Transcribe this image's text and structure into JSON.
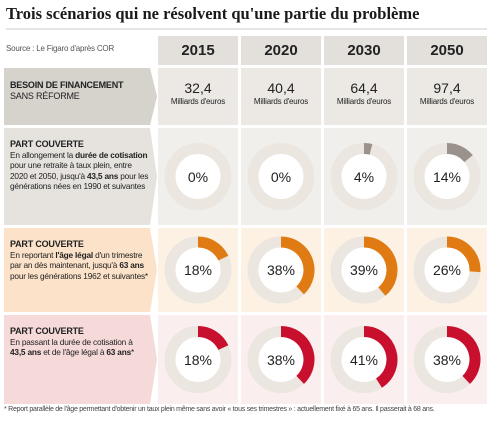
{
  "title": "Trois scénarios qui ne résolvent qu'une partie du problème",
  "source": "Source : Le Figaro d'après COR",
  "years": [
    "2015",
    "2020",
    "2030",
    "2050"
  ],
  "financing": {
    "heading": "BESOIN DE FINANCEMENT",
    "subheading": "SANS RÉFORME",
    "values": [
      32.4,
      40.4,
      64.4,
      97.4
    ],
    "value_labels": [
      "32,4",
      "40,4",
      "64,4",
      "97,4"
    ],
    "unit": "Milliards d'euros"
  },
  "scenarios": [
    {
      "heading": "PART COUVERTE",
      "text": [
        {
          "text": "En allongement la "
        },
        {
          "text": "durée de cotisation",
          "bold": true
        },
        {
          "text": " pour une retraite à taux plein, entre 2020 et 2050, jusqu'à "
        },
        {
          "text": "43,5 ans",
          "bold": true
        },
        {
          "text": " pour les générations nées en 1990 et suivantes"
        }
      ],
      "color": "#9b938b",
      "values": [
        0,
        0,
        4,
        14
      ],
      "value_labels": [
        "0%",
        "0%",
        "4%",
        "14%"
      ]
    },
    {
      "heading": "PART COUVERTE",
      "text": [
        {
          "text": "En reportant "
        },
        {
          "text": "l'âge légal",
          "bold": true
        },
        {
          "text": " d'un trimestre par an dès maintenant, jusqu'à "
        },
        {
          "text": "63 ans",
          "bold": true
        },
        {
          "text": " pour les générations 1962 et suivantes*"
        }
      ],
      "color": "#e07a12",
      "values": [
        18,
        38,
        39,
        26
      ],
      "value_labels": [
        "18%",
        "38%",
        "39%",
        "26%"
      ]
    },
    {
      "heading": "PART COUVERTE",
      "text": [
        {
          "text": "En passant la durée de cotisation à "
        },
        {
          "text": "43,5 ans",
          "bold": true
        },
        {
          "text": " et de l'âge légal à "
        },
        {
          "text": "63 ans",
          "bold": true
        },
        {
          "text": "*"
        }
      ],
      "color": "#c8102e",
      "values": [
        18,
        38,
        41,
        38
      ],
      "value_labels": [
        "18%",
        "38%",
        "41%",
        "38%"
      ]
    }
  ],
  "footnote": "* Report parallèle de l'âge permettant d'obtenir un taux plein même sans avoir « tous ses trimestres » : actuellement fixé à 65 ans. Il passerait à 68 ans."
}
